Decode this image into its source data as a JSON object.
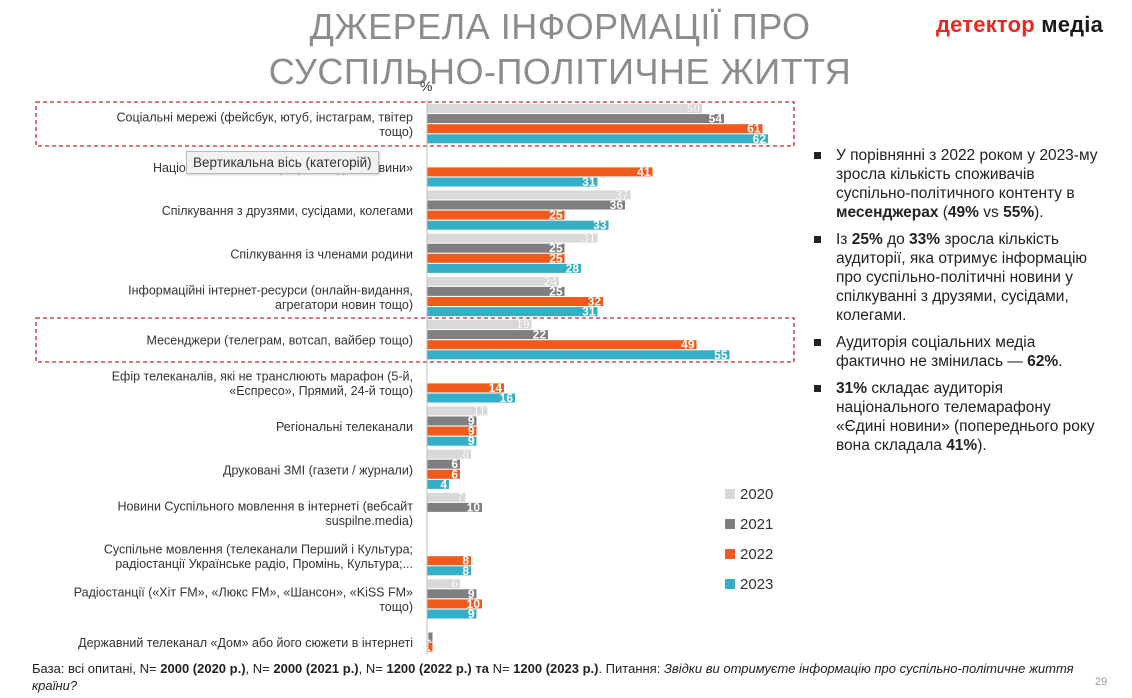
{
  "title_line1": "ДЖЕРЕЛА ІНФОРМАЦІЇ ПРО",
  "title_line2": "СУСПІЛЬНО-ПОЛІТИЧНЕ ЖИТТЯ",
  "logo_part1": "детектор",
  "logo_part2": "медіа",
  "unit": "%",
  "tooltip": "Вертикальна вісь (категорій)",
  "page_number": "29",
  "colors": {
    "2020": "#d9d9d9",
    "2021": "#7f7f7f",
    "2022": "#f05a1a",
    "2023": "#36aec7",
    "highlight": "#c0262d"
  },
  "chart_data": {
    "type": "bar",
    "orientation": "horizontal",
    "highlighted_categories": [
      0,
      5
    ],
    "legend_position": "bottom-right",
    "categories": [
      [
        "Соціальні мережі (фейсбук, ютуб, інстаграм, твітер",
        "тощо)"
      ],
      [
        "Національний телемарафон «Єдині новини»"
      ],
      [
        "Спілкування з друзями, сусідами, колегами"
      ],
      [
        "Спілкування із членами родини"
      ],
      [
        "Інформаційні інтернет-ресурси (онлайн-видання,",
        "агрегатори новин тощо)"
      ],
      [
        "Месенджери (телеграм, вотсап, вайбер тощо)"
      ],
      [
        "Ефір телеканалів, які не транслюють марафон (5-й,",
        "«Еспресо», Прямий, 24-й тощо)"
      ],
      [
        "Регіональні телеканали"
      ],
      [
        "Друковані ЗМІ (газети / журнали)"
      ],
      [
        "Новини Суспільного мовлення в інтернеті (вебсайт",
        "suspilne.media)"
      ],
      [
        "Суспільне мовлення (телеканали Перший і Культура;",
        "радіостанції Українське радіо, Промінь, Культура;..."
      ],
      [
        "Радіостанції («Хіт FM», «Люкс FM», «Шансон», «KiSS FM»",
        "тощо)"
      ],
      [
        "Державний телеканал «Дом» або його сюжети в інтернеті"
      ]
    ],
    "series": [
      {
        "name": "2020",
        "values": [
          50,
          null,
          37,
          31,
          24,
          19,
          null,
          11,
          8,
          7,
          null,
          6,
          null
        ]
      },
      {
        "name": "2021",
        "values": [
          54,
          null,
          36,
          25,
          25,
          22,
          null,
          9,
          6,
          10,
          null,
          9,
          1
        ]
      },
      {
        "name": "2022",
        "values": [
          61,
          41,
          25,
          25,
          32,
          49,
          14,
          9,
          6,
          null,
          8,
          10,
          1
        ]
      },
      {
        "name": "2023",
        "values": [
          62,
          31,
          33,
          28,
          31,
          55,
          16,
          9,
          4,
          null,
          8,
          9,
          null
        ]
      }
    ]
  },
  "notes": [
    [
      {
        "t": "У порівнянні з 2022 роком у 2023-му зросла кількість споживачів суспільно-політичного контенту в ",
        "b": false
      },
      {
        "t": "месенджерах",
        "b": true
      },
      {
        "t": " (",
        "b": false
      },
      {
        "t": "49%",
        "b": true
      },
      {
        "t": " vs ",
        "b": false
      },
      {
        "t": "55%",
        "b": true
      },
      {
        "t": ").",
        "b": false
      }
    ],
    [
      {
        "t": "Із ",
        "b": false
      },
      {
        "t": "25%",
        "b": true
      },
      {
        "t": " до ",
        "b": false
      },
      {
        "t": "33%",
        "b": true
      },
      {
        "t": " зросла кількість аудиторії, яка отримує інформацію про суспільно-політичні новини у спілкуванні з друзями, сусідами, колегами.",
        "b": false
      }
    ],
    [
      {
        "t": "Аудиторія соціальних медіа фактично не змінилась — ",
        "b": false
      },
      {
        "t": "62%",
        "b": true
      },
      {
        "t": ".",
        "b": false
      }
    ],
    [
      {
        "t": "31%",
        "b": true
      },
      {
        "t": " складає аудиторія національного телемарафону «Єдині новини» (попереднього року вона складала ",
        "b": false
      },
      {
        "t": "41%",
        "b": true
      },
      {
        "t": ").",
        "b": false
      }
    ]
  ],
  "footer": [
    {
      "t": "База: всі опитані, N= ",
      "s": ""
    },
    {
      "t": "2000 (2020 р.)",
      "s": "b"
    },
    {
      "t": ", N= ",
      "s": ""
    },
    {
      "t": "2000 (2021 р.)",
      "s": "b"
    },
    {
      "t": ", N= ",
      "s": ""
    },
    {
      "t": "1200 (2022 р.) та",
      "s": "b"
    },
    {
      "t": " N= ",
      "s": ""
    },
    {
      "t": "1200 (2023 р.)",
      "s": "b"
    },
    {
      "t": ". Питання: ",
      "s": ""
    },
    {
      "t": "Звідки ви отримуєте інформацію про суспільно-політичне життя країни?",
      "s": "i"
    }
  ]
}
